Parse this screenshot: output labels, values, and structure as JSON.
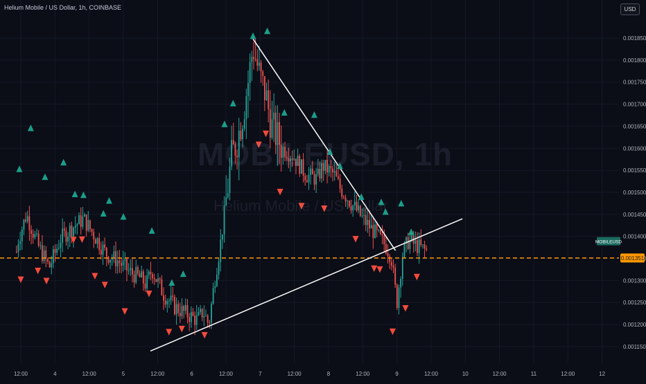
{
  "header": {
    "title": "Helium Mobile / US Dollar, 1h, COINBASE"
  },
  "currency_button": {
    "label": "USD"
  },
  "watermark": {
    "symbol": "MOBILEUSD, 1h",
    "description": "Helium Mobile / US Dollar"
  },
  "colors": {
    "background": "#0b0d17",
    "bull": "#26a69a",
    "bear": "#ef5350",
    "up_marker": "#1b9e8a",
    "down_marker": "#f24b3c",
    "trendline": "#ffffff",
    "price_line": "#ff9800",
    "last_label_bg": "#ff9800",
    "symbol_label_bg": "#1b6b5f",
    "axis_text": "#b2b5be"
  },
  "chart_data": {
    "type": "candlestick",
    "title": "Helium Mobile / US Dollar, 1h, COINBASE",
    "y_axis": {
      "ticks": [
        "0.001850",
        "0.001800",
        "0.001750",
        "0.001700",
        "0.001650",
        "0.001600",
        "0.001550",
        "0.001500",
        "0.001450",
        "0.001400",
        "0.001350",
        "0.001300",
        "0.001250",
        "0.001200",
        "0.001150"
      ],
      "range": [
        0.001135,
        0.00188
      ]
    },
    "x_axis": {
      "ticks": [
        "12:00",
        "4",
        "12:00",
        "5",
        "12:00",
        "6",
        "12:00",
        "7",
        "12:00",
        "8",
        "12:00",
        "9",
        "12:00",
        "10",
        "12:00",
        "11",
        "12:00",
        "12"
      ],
      "range_hours": [
        0,
        180
      ]
    },
    "current_price": {
      "value": 0.001351,
      "label": "0.001351"
    },
    "symbol_label": {
      "text": "MOBILEUSD",
      "value": 0.001389
    },
    "trendlines": [
      {
        "from": {
          "hour": 81.5,
          "price": 0.001848
        },
        "to": {
          "hour": 131.5,
          "price": 0.001368
        }
      },
      {
        "from": {
          "hour": 45.5,
          "price": 0.00114
        },
        "to": {
          "hour": 155.0,
          "price": 0.00144
        }
      }
    ],
    "candle_anchors": [
      [
        -1,
        0.00139
      ],
      [
        2,
        0.00145
      ],
      [
        6,
        0.00138
      ],
      [
        10,
        0.00133
      ],
      [
        14,
        0.001395
      ],
      [
        18,
        0.00142
      ],
      [
        22,
        0.00144
      ],
      [
        26,
        0.0014
      ],
      [
        30,
        0.00136
      ],
      [
        34,
        0.001345
      ],
      [
        38,
        0.00132
      ],
      [
        42,
        0.001305
      ],
      [
        44,
        0.00129
      ],
      [
        46,
        0.001325
      ],
      [
        50,
        0.00127
      ],
      [
        54,
        0.00124
      ],
      [
        58,
        0.001225
      ],
      [
        62,
        0.00121
      ],
      [
        64,
        0.00123
      ],
      [
        66,
        0.0012
      ],
      [
        68,
        0.0013
      ],
      [
        70,
        0.00138
      ],
      [
        72,
        0.00148
      ],
      [
        74,
        0.00158
      ],
      [
        76,
        0.00162
      ],
      [
        78,
        0.00168
      ],
      [
        80,
        0.00176
      ],
      [
        81.5,
        0.00183
      ],
      [
        84,
        0.00176
      ],
      [
        86,
        0.00172
      ],
      [
        88,
        0.00165
      ],
      [
        92,
        0.0016
      ],
      [
        96,
        0.00158
      ],
      [
        98,
        0.00156
      ],
      [
        100,
        0.00154
      ],
      [
        104,
        0.00153
      ],
      [
        106,
        0.00156
      ],
      [
        110,
        0.00154
      ],
      [
        112,
        0.00151
      ],
      [
        116,
        0.001475
      ],
      [
        120,
        0.00144
      ],
      [
        124,
        0.00141
      ],
      [
        128,
        0.00138
      ],
      [
        130,
        0.001355
      ],
      [
        131,
        0.0013
      ],
      [
        132,
        0.00125
      ],
      [
        134,
        0.00136
      ],
      [
        136,
        0.00139
      ],
      [
        140,
        0.001375
      ],
      [
        143,
        0.001365
      ]
    ],
    "signals": {
      "up": [
        [
          -0.5,
          0.001553
        ],
        [
          3.5,
          0.001646
        ],
        [
          8.5,
          0.001535
        ],
        [
          15,
          0.001568
        ],
        [
          19,
          0.001496
        ],
        [
          22,
          0.001494
        ],
        [
          29,
          0.001452
        ],
        [
          31,
          0.001481
        ],
        [
          36,
          0.001445
        ],
        [
          46,
          0.001413
        ],
        [
          53,
          0.001295
        ],
        [
          57,
          0.001315
        ],
        [
          71.5,
          0.001655
        ],
        [
          74.5,
          0.001702
        ],
        [
          81.5,
          0.001855
        ],
        [
          86.5,
          0.001866
        ],
        [
          92.5,
          0.001681
        ],
        [
          103,
          0.001676
        ],
        [
          108.5,
          0.001592
        ],
        [
          112,
          0.00156
        ],
        [
          119.5,
          0.00149
        ],
        [
          126.5,
          0.001478
        ],
        [
          128,
          0.001456
        ],
        [
          133.5,
          0.001475
        ],
        [
          137,
          0.00141
        ]
      ],
      "down": [
        [
          0,
          0.001302
        ],
        [
          6,
          0.001322
        ],
        [
          9,
          0.001299
        ],
        [
          18.5,
          0.001392
        ],
        [
          21.5,
          0.001393
        ],
        [
          26,
          0.00131
        ],
        [
          29.5,
          0.00129
        ],
        [
          36.5,
          0.00123
        ],
        [
          45,
          0.00127
        ],
        [
          52,
          0.001183
        ],
        [
          56.5,
          0.00119
        ],
        [
          64.5,
          0.001176
        ],
        [
          83.5,
          0.001608
        ],
        [
          86,
          0.001633
        ],
        [
          91,
          0.001501
        ],
        [
          98.5,
          0.001469
        ],
        [
          106.5,
          0.001463
        ],
        [
          117.5,
          0.001394
        ],
        [
          124,
          0.001327
        ],
        [
          126,
          0.001325
        ],
        [
          130.5,
          0.001184
        ],
        [
          135,
          0.001237
        ],
        [
          139,
          0.001308
        ]
      ]
    }
  }
}
